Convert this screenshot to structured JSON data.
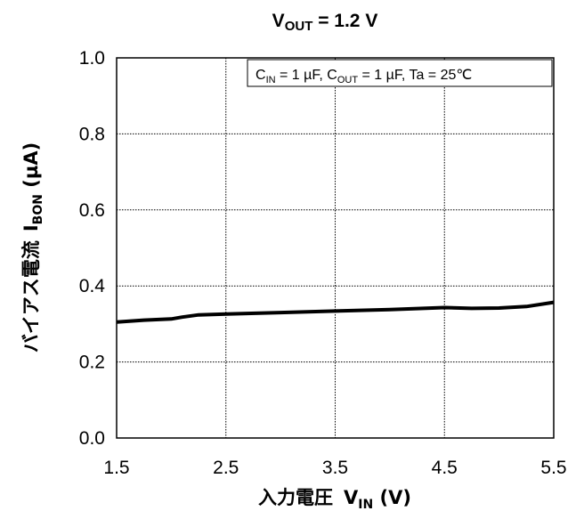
{
  "chart_data": {
    "type": "line",
    "title": {
      "main": "V",
      "sub": "OUT",
      "rest": " = 1.2 V"
    },
    "condition": {
      "parts": [
        {
          "t": "C"
        },
        {
          "t": "IN",
          "sub": true
        },
        {
          "t": " = 1 µF, C"
        },
        {
          "t": "OUT",
          "sub": true
        },
        {
          "t": " = 1 µF, Ta = 25℃"
        }
      ]
    },
    "xlabel": {
      "jp": "入力電圧",
      "sym": "V",
      "sub": "IN",
      "unit": " (V)"
    },
    "ylabel": {
      "jp": "バイアス電流",
      "sym": "I",
      "sub": "BON",
      "unit": " (µA)"
    },
    "xlim": [
      1.5,
      5.5
    ],
    "ylim": [
      0.0,
      1.0
    ],
    "xticks": [
      "1.5",
      "2.5",
      "3.5",
      "4.5",
      "5.5"
    ],
    "yticks": [
      "0.0",
      "0.2",
      "0.4",
      "0.6",
      "0.8",
      "1.0"
    ],
    "grid": true,
    "series": [
      {
        "color": "#000000",
        "x": [
          1.5,
          1.75,
          2.0,
          2.1,
          2.25,
          2.5,
          3.0,
          3.5,
          4.0,
          4.5,
          4.75,
          5.0,
          5.25,
          5.5
        ],
        "y": [
          0.305,
          0.31,
          0.313,
          0.318,
          0.324,
          0.326,
          0.33,
          0.334,
          0.338,
          0.343,
          0.341,
          0.342,
          0.346,
          0.357
        ]
      }
    ]
  }
}
